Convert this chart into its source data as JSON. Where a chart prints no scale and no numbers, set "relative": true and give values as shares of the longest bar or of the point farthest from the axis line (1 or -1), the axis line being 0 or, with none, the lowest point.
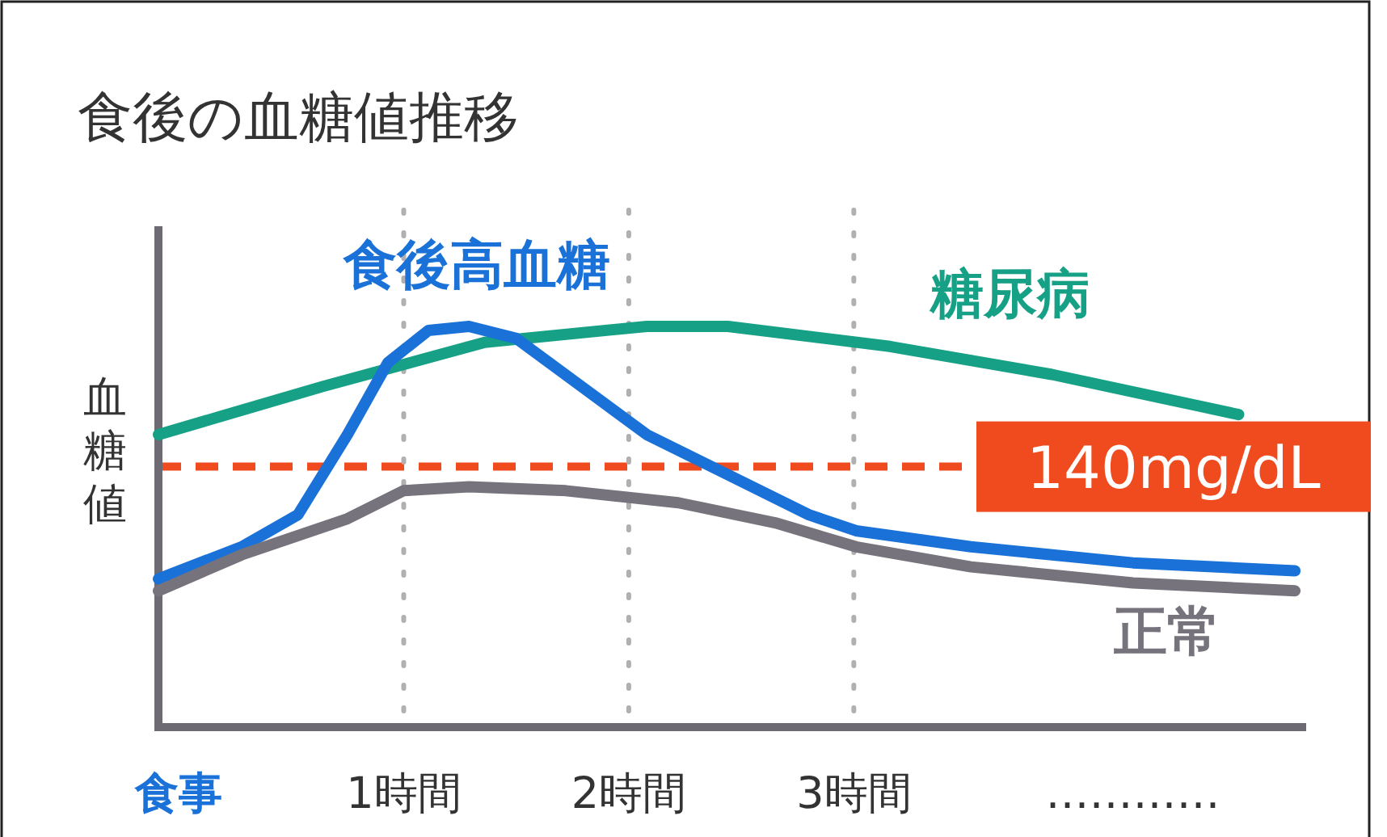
{
  "chart_data": {
    "type": "line",
    "title": "食後の血糖値推移",
    "ylabel": "血糖値",
    "relative": true,
    "xlim": [
      -0.09,
      5.01
    ],
    "xticks": [
      {
        "value": 0,
        "label": "食事"
      },
      {
        "value": 1,
        "label": "1時間"
      },
      {
        "value": 2,
        "label": "2時間"
      },
      {
        "value": 3,
        "label": "3時間"
      },
      {
        "value": 4.24,
        "label": "…………"
      }
    ],
    "series": [
      {
        "name": "糖尿病",
        "color": "#16a085",
        "x": [
          -0.09,
          0.64,
          1.36,
          2.08,
          2.44,
          3.16,
          3.88,
          4.38,
          4.71
        ],
        "values": [
          0.73,
          0.85,
          0.96,
          1.0,
          1.0,
          0.95,
          0.88,
          0.82,
          0.78
        ]
      },
      {
        "name": "食後高血糖",
        "color": "#1a72d9",
        "x": [
          -0.09,
          0.28,
          0.53,
          0.75,
          0.93,
          1.11,
          1.29,
          1.5,
          1.79,
          2.08,
          2.44,
          2.8,
          3.01,
          3.52,
          4.24,
          4.96
        ],
        "values": [
          0.37,
          0.45,
          0.53,
          0.73,
          0.91,
          0.99,
          1.0,
          0.97,
          0.85,
          0.73,
          0.63,
          0.53,
          0.49,
          0.45,
          0.41,
          0.39
        ]
      },
      {
        "name": "正常",
        "color": "#77737d",
        "x": [
          -0.09,
          0.28,
          0.75,
          1.0,
          1.29,
          1.72,
          2.22,
          2.65,
          3.01,
          3.52,
          4.24,
          4.96
        ],
        "values": [
          0.34,
          0.43,
          0.52,
          0.59,
          0.6,
          0.59,
          0.56,
          0.51,
          0.45,
          0.4,
          0.36,
          0.34
        ]
      }
    ],
    "ref_lines": [
      {
        "axis": "y",
        "value": 0.65,
        "label": "140mg/dL",
        "color": "#f04b1e",
        "line_style": "dashed"
      },
      {
        "axis": "x",
        "value": 1,
        "color": "#b0b0b0",
        "line_style": "dotted"
      },
      {
        "axis": "x",
        "value": 2,
        "color": "#b0b0b0",
        "line_style": "dotted"
      },
      {
        "axis": "x",
        "value": 3,
        "color": "#b0b0b0",
        "line_style": "dotted"
      }
    ],
    "marker": "none",
    "line_style": "solid"
  }
}
